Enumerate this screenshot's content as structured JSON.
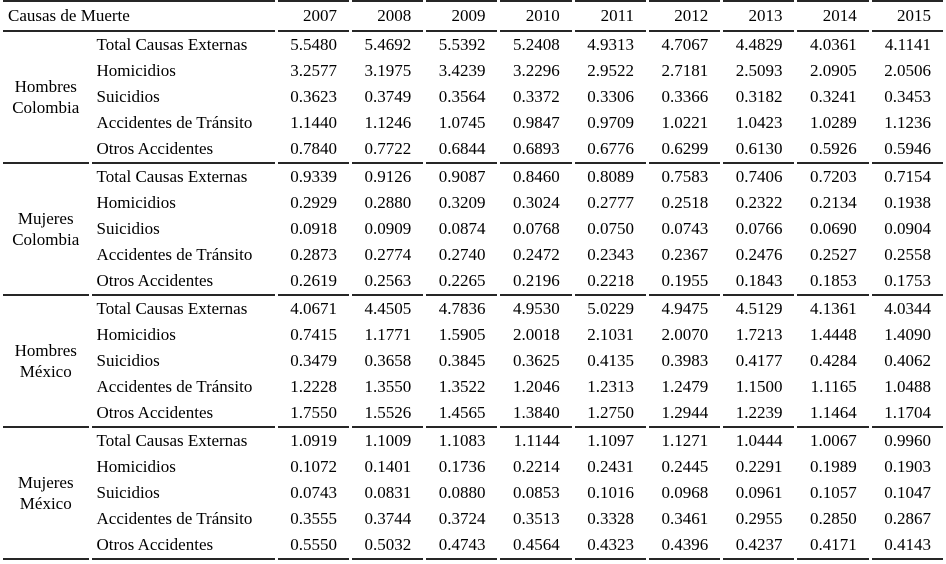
{
  "table": {
    "header_col_label": "Causas de Muerte",
    "years": [
      "2007",
      "2008",
      "2009",
      "2010",
      "2011",
      "2012",
      "2013",
      "2014",
      "2015"
    ],
    "groups": [
      {
        "label_lines": [
          "Hombres",
          "Colombia"
        ],
        "rows": [
          {
            "cause": "Total Causas Externas",
            "values": [
              "5.5480",
              "5.4692",
              "5.5392",
              "5.2408",
              "4.9313",
              "4.7067",
              "4.4829",
              "4.0361",
              "4.1141"
            ]
          },
          {
            "cause": "Homicidios",
            "values": [
              "3.2577",
              "3.1975",
              "3.4239",
              "3.2296",
              "2.9522",
              "2.7181",
              "2.5093",
              "2.0905",
              "2.0506"
            ]
          },
          {
            "cause": "Suicidios",
            "values": [
              "0.3623",
              "0.3749",
              "0.3564",
              "0.3372",
              "0.3306",
              "0.3366",
              "0.3182",
              "0.3241",
              "0.3453"
            ]
          },
          {
            "cause": "Accidentes de Tránsito",
            "values": [
              "1.1440",
              "1.1246",
              "1.0745",
              "0.9847",
              "0.9709",
              "1.0221",
              "1.0423",
              "1.0289",
              "1.1236"
            ]
          },
          {
            "cause": "Otros Accidentes",
            "values": [
              "0.7840",
              "0.7722",
              "0.6844",
              "0.6893",
              "0.6776",
              "0.6299",
              "0.6130",
              "0.5926",
              "0.5946"
            ]
          }
        ]
      },
      {
        "label_lines": [
          "Mujeres",
          "Colombia"
        ],
        "rows": [
          {
            "cause": "Total Causas Externas",
            "values": [
              "0.9339",
              "0.9126",
              "0.9087",
              "0.8460",
              "0.8089",
              "0.7583",
              "0.7406",
              "0.7203",
              "0.7154"
            ]
          },
          {
            "cause": "Homicidios",
            "values": [
              "0.2929",
              "0.2880",
              "0.3209",
              "0.3024",
              "0.2777",
              "0.2518",
              "0.2322",
              "0.2134",
              "0.1938"
            ]
          },
          {
            "cause": "Suicidios",
            "values": [
              "0.0918",
              "0.0909",
              "0.0874",
              "0.0768",
              "0.0750",
              "0.0743",
              "0.0766",
              "0.0690",
              "0.0904"
            ]
          },
          {
            "cause": "Accidentes de Tránsito",
            "values": [
              "0.2873",
              "0.2774",
              "0.2740",
              "0.2472",
              "0.2343",
              "0.2367",
              "0.2476",
              "0.2527",
              "0.2558"
            ]
          },
          {
            "cause": "Otros Accidentes",
            "values": [
              "0.2619",
              "0.2563",
              "0.2265",
              "0.2196",
              "0.2218",
              "0.1955",
              "0.1843",
              "0.1853",
              "0.1753"
            ]
          }
        ]
      },
      {
        "label_lines": [
          "Hombres",
          "México"
        ],
        "rows": [
          {
            "cause": "Total Causas Externas",
            "values": [
              "4.0671",
              "4.4505",
              "4.7836",
              "4.9530",
              "5.0229",
              "4.9475",
              "4.5129",
              "4.1361",
              "4.0344"
            ]
          },
          {
            "cause": "Homicidios",
            "values": [
              "0.7415",
              "1.1771",
              "1.5905",
              "2.0018",
              "2.1031",
              "2.0070",
              "1.7213",
              "1.4448",
              "1.4090"
            ]
          },
          {
            "cause": "Suicidios",
            "values": [
              "0.3479",
              "0.3658",
              "0.3845",
              "0.3625",
              "0.4135",
              "0.3983",
              "0.4177",
              "0.4284",
              "0.4062"
            ]
          },
          {
            "cause": "Accidentes de Tránsito",
            "values": [
              "1.2228",
              "1.3550",
              "1.3522",
              "1.2046",
              "1.2313",
              "1.2479",
              "1.1500",
              "1.1165",
              "1.0488"
            ]
          },
          {
            "cause": "Otros Accidentes",
            "values": [
              "1.7550",
              "1.5526",
              "1.4565",
              "1.3840",
              "1.2750",
              "1.2944",
              "1.2239",
              "1.1464",
              "1.1704"
            ]
          }
        ]
      },
      {
        "label_lines": [
          "Mujeres",
          "México"
        ],
        "rows": [
          {
            "cause": "Total Causas Externas",
            "values": [
              "1.0919",
              "1.1009",
              "1.1083",
              "1.1144",
              "1.1097",
              "1.1271",
              "1.0444",
              "1.0067",
              "0.9960"
            ]
          },
          {
            "cause": "Homicidios",
            "values": [
              "0.1072",
              "0.1401",
              "0.1736",
              "0.2214",
              "0.2431",
              "0.2445",
              "0.2291",
              "0.1989",
              "0.1903"
            ]
          },
          {
            "cause": "Suicidios",
            "values": [
              "0.0743",
              "0.0831",
              "0.0880",
              "0.0853",
              "0.1016",
              "0.0968",
              "0.0961",
              "0.1057",
              "0.1047"
            ]
          },
          {
            "cause": "Accidentes de Tránsito",
            "values": [
              "0.3555",
              "0.3744",
              "0.3724",
              "0.3513",
              "0.3328",
              "0.3461",
              "0.2955",
              "0.2850",
              "0.2867"
            ]
          },
          {
            "cause": "Otros Accidentes",
            "values": [
              "0.5550",
              "0.5032",
              "0.4743",
              "0.4564",
              "0.4323",
              "0.4396",
              "0.4237",
              "0.4171",
              "0.4143"
            ]
          }
        ]
      }
    ]
  },
  "colors": {
    "rule": "#262626",
    "text": "#000000",
    "background": "#ffffff"
  }
}
